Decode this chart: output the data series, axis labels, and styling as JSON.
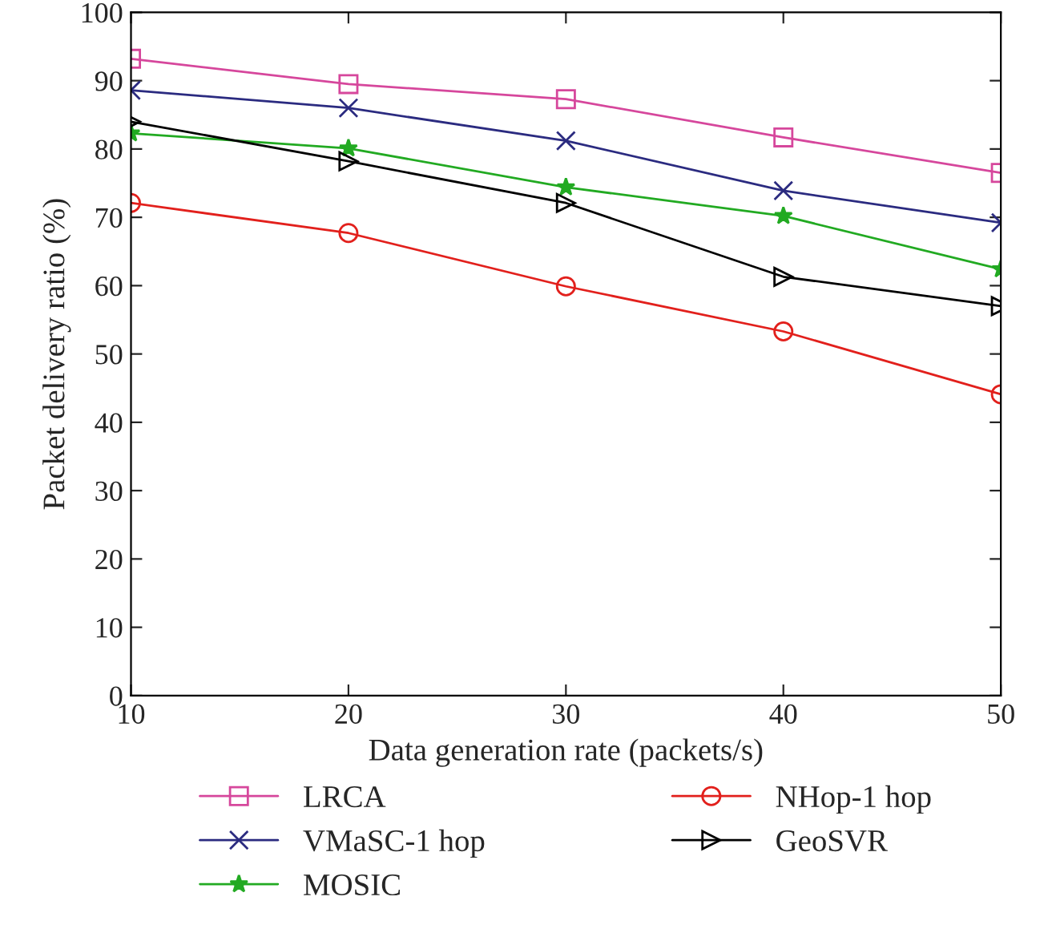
{
  "chart_data": {
    "type": "line",
    "xlabel": "Data generation rate (packets/s)",
    "ylabel": "Packet delivery ratio (%)",
    "x": [
      10,
      20,
      30,
      40,
      50
    ],
    "series": [
      {
        "name": "LRCA",
        "color": "#d6479c",
        "marker": "square",
        "values": [
          93.2,
          89.5,
          87.3,
          81.7,
          76.5
        ]
      },
      {
        "name": "VMaSC-1 hop",
        "color": "#2b2b80",
        "marker": "cross",
        "values": [
          88.6,
          86.0,
          81.2,
          73.9,
          69.2
        ]
      },
      {
        "name": "MOSIC",
        "color": "#22aa22",
        "marker": "star",
        "values": [
          82.3,
          80.1,
          74.4,
          70.2,
          62.4
        ]
      },
      {
        "name": "NHop-1 hop",
        "color": "#e2201c",
        "marker": "circle",
        "values": [
          72.1,
          67.7,
          59.9,
          53.3,
          44.1
        ]
      },
      {
        "name": "GeoSVR",
        "color": "#000000",
        "marker": "triangle",
        "values": [
          84.0,
          78.2,
          72.1,
          61.3,
          57.0
        ]
      }
    ],
    "xlim": [
      10,
      50
    ],
    "xticks": [
      10,
      20,
      30,
      40,
      50
    ],
    "ylim": [
      0,
      100
    ],
    "yticks": [
      0,
      10,
      20,
      30,
      40,
      50,
      60,
      70,
      80,
      90,
      100
    ],
    "grid": false,
    "legend": "bottom",
    "line_style": "solid"
  }
}
